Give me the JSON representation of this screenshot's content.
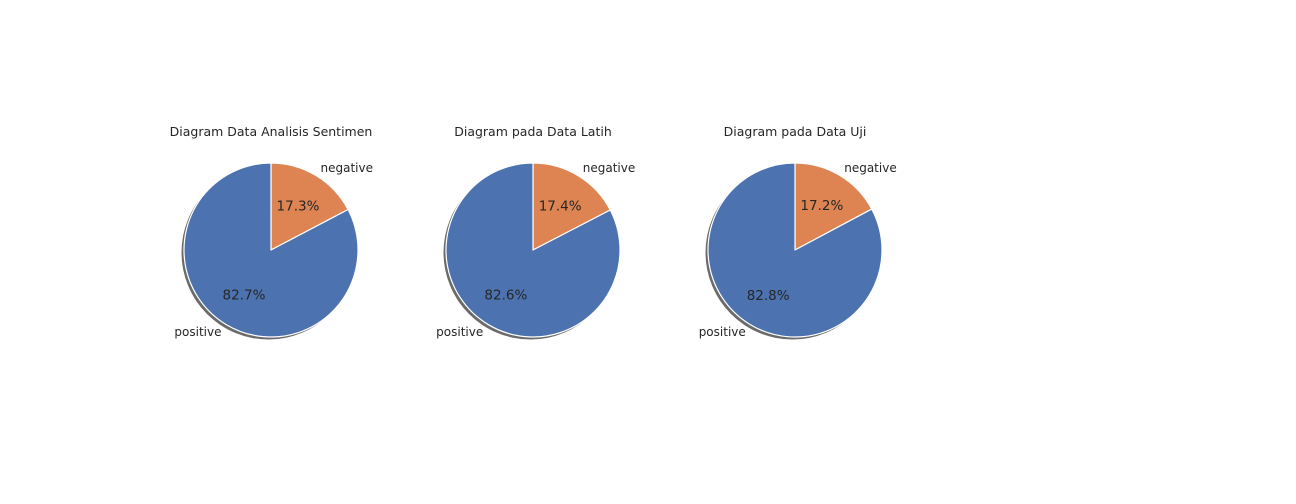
{
  "chart_data": [
    {
      "type": "pie",
      "title": "Diagram Data Analisis Sentimen",
      "slices": [
        {
          "label": "negative",
          "value": 17.3,
          "pct_label": "17.3%",
          "color": "#dd8452"
        },
        {
          "label": "positive",
          "value": 82.7,
          "pct_label": "82.7%",
          "color": "#4c72b0"
        }
      ],
      "shadow": true,
      "start_angle": 90
    },
    {
      "type": "pie",
      "title": "Diagram pada Data Latih",
      "slices": [
        {
          "label": "negative",
          "value": 17.4,
          "pct_label": "17.4%",
          "color": "#dd8452"
        },
        {
          "label": "positive",
          "value": 82.6,
          "pct_label": "82.6%",
          "color": "#4c72b0"
        }
      ],
      "shadow": true,
      "start_angle": 90
    },
    {
      "type": "pie",
      "title": "Diagram pada Data Uji",
      "slices": [
        {
          "label": "negative",
          "value": 17.2,
          "pct_label": "17.2%",
          "color": "#dd8452"
        },
        {
          "label": "positive",
          "value": 82.8,
          "pct_label": "82.8%",
          "color": "#4c72b0"
        }
      ],
      "shadow": true,
      "start_angle": 90
    }
  ]
}
